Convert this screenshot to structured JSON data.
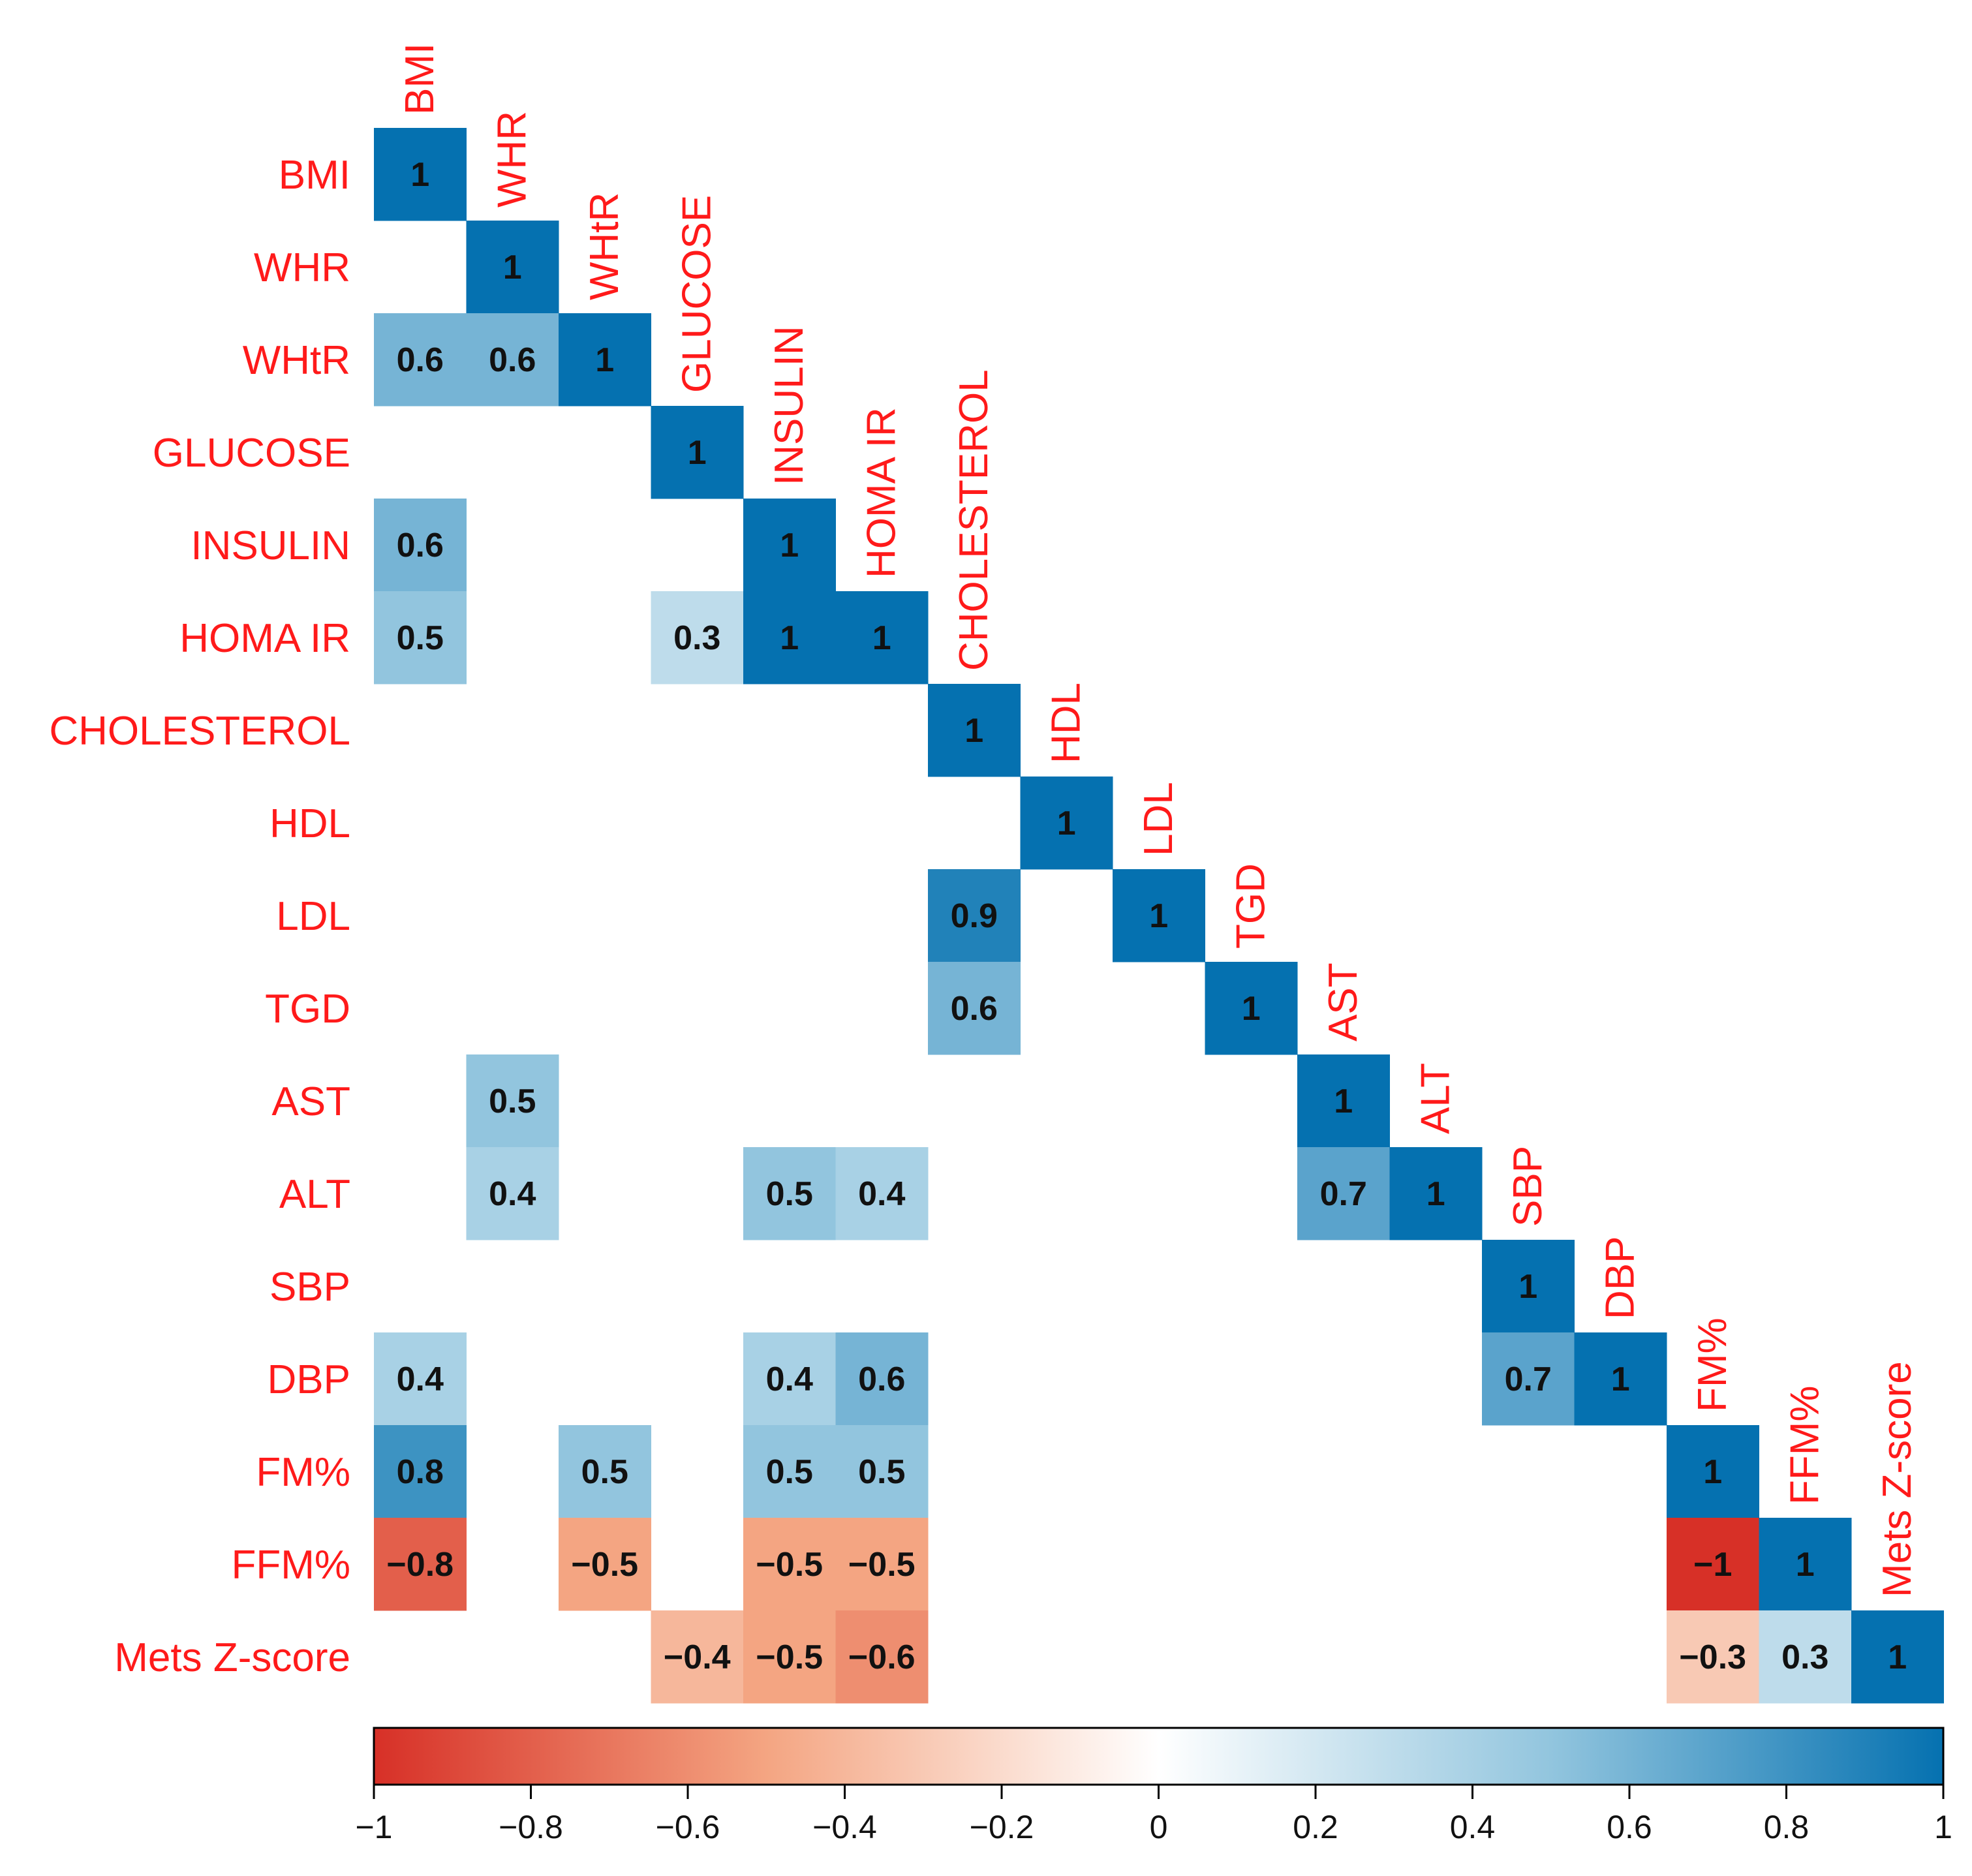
{
  "chart_data": {
    "type": "heatmap",
    "title": "",
    "variables": [
      "BMI",
      "WHR",
      "WHtR",
      "GLUCOSE",
      "INSULIN",
      "HOMA IR",
      "CHOLESTEROL",
      "HDL",
      "LDL",
      "TGD",
      "AST",
      "ALT",
      "SBP",
      "DBP",
      "FM%",
      "FFM%",
      "Mets Z-score"
    ],
    "cells": [
      {
        "row": 0,
        "col": 0,
        "value": 1,
        "label": "1"
      },
      {
        "row": 1,
        "col": 1,
        "value": 1,
        "label": "1"
      },
      {
        "row": 2,
        "col": 0,
        "value": 0.6,
        "label": "0.6"
      },
      {
        "row": 2,
        "col": 1,
        "value": 0.6,
        "label": "0.6"
      },
      {
        "row": 2,
        "col": 2,
        "value": 1,
        "label": "1"
      },
      {
        "row": 3,
        "col": 3,
        "value": 1,
        "label": "1"
      },
      {
        "row": 4,
        "col": 0,
        "value": 0.6,
        "label": "0.6"
      },
      {
        "row": 4,
        "col": 4,
        "value": 1,
        "label": "1"
      },
      {
        "row": 5,
        "col": 0,
        "value": 0.5,
        "label": "0.5"
      },
      {
        "row": 5,
        "col": 3,
        "value": 0.3,
        "label": "0.3"
      },
      {
        "row": 5,
        "col": 4,
        "value": 1,
        "label": "1"
      },
      {
        "row": 5,
        "col": 5,
        "value": 1,
        "label": "1"
      },
      {
        "row": 6,
        "col": 6,
        "value": 1,
        "label": "1"
      },
      {
        "row": 7,
        "col": 7,
        "value": 1,
        "label": "1"
      },
      {
        "row": 8,
        "col": 6,
        "value": 0.9,
        "label": "0.9"
      },
      {
        "row": 8,
        "col": 8,
        "value": 1,
        "label": "1"
      },
      {
        "row": 9,
        "col": 6,
        "value": 0.6,
        "label": "0.6"
      },
      {
        "row": 9,
        "col": 9,
        "value": 1,
        "label": "1"
      },
      {
        "row": 10,
        "col": 1,
        "value": 0.5,
        "label": "0.5"
      },
      {
        "row": 10,
        "col": 10,
        "value": 1,
        "label": "1"
      },
      {
        "row": 11,
        "col": 1,
        "value": 0.4,
        "label": "0.4"
      },
      {
        "row": 11,
        "col": 4,
        "value": 0.5,
        "label": "0.5"
      },
      {
        "row": 11,
        "col": 5,
        "value": 0.4,
        "label": "0.4"
      },
      {
        "row": 11,
        "col": 10,
        "value": 0.7,
        "label": "0.7"
      },
      {
        "row": 11,
        "col": 11,
        "value": 1,
        "label": "1"
      },
      {
        "row": 12,
        "col": 12,
        "value": 1,
        "label": "1"
      },
      {
        "row": 13,
        "col": 0,
        "value": 0.4,
        "label": "0.4"
      },
      {
        "row": 13,
        "col": 4,
        "value": 0.4,
        "label": "0.4"
      },
      {
        "row": 13,
        "col": 5,
        "value": 0.6,
        "label": "0.6"
      },
      {
        "row": 13,
        "col": 12,
        "value": 0.7,
        "label": "0.7"
      },
      {
        "row": 13,
        "col": 13,
        "value": 1,
        "label": "1"
      },
      {
        "row": 14,
        "col": 0,
        "value": 0.8,
        "label": "0.8"
      },
      {
        "row": 14,
        "col": 2,
        "value": 0.5,
        "label": "0.5"
      },
      {
        "row": 14,
        "col": 4,
        "value": 0.5,
        "label": "0.5"
      },
      {
        "row": 14,
        "col": 5,
        "value": 0.5,
        "label": "0.5"
      },
      {
        "row": 14,
        "col": 14,
        "value": 1,
        "label": "1"
      },
      {
        "row": 15,
        "col": 0,
        "value": -0.8,
        "label": "−0.8"
      },
      {
        "row": 15,
        "col": 2,
        "value": -0.5,
        "label": "−0.5"
      },
      {
        "row": 15,
        "col": 4,
        "value": -0.5,
        "label": "−0.5"
      },
      {
        "row": 15,
        "col": 5,
        "value": -0.5,
        "label": "−0.5"
      },
      {
        "row": 15,
        "col": 14,
        "value": -1,
        "label": "−1"
      },
      {
        "row": 15,
        "col": 15,
        "value": 1,
        "label": "1"
      },
      {
        "row": 16,
        "col": 3,
        "value": -0.4,
        "label": "−0.4"
      },
      {
        "row": 16,
        "col": 4,
        "value": -0.5,
        "label": "−0.5"
      },
      {
        "row": 16,
        "col": 5,
        "value": -0.6,
        "label": "−0.6"
      },
      {
        "row": 16,
        "col": 14,
        "value": -0.3,
        "label": "−0.3"
      },
      {
        "row": 16,
        "col": 15,
        "value": 0.3,
        "label": "0.3"
      },
      {
        "row": 16,
        "col": 16,
        "value": 1,
        "label": "1"
      }
    ],
    "colorbar": {
      "range": [
        -1,
        1
      ],
      "ticks": [
        -1,
        -0.8,
        -0.6,
        -0.4,
        -0.2,
        0,
        0.2,
        0.4,
        0.6,
        0.8,
        1
      ],
      "tick_labels": [
        "−1",
        "−0.8",
        "−0.6",
        "−0.4",
        "−0.2",
        "0",
        "0.2",
        "0.4",
        "0.6",
        "0.8",
        "1"
      ],
      "colors": [
        "#d7301f",
        "#f4a582",
        "#ffffff",
        "#92c5de",
        "#0571b0"
      ]
    }
  }
}
